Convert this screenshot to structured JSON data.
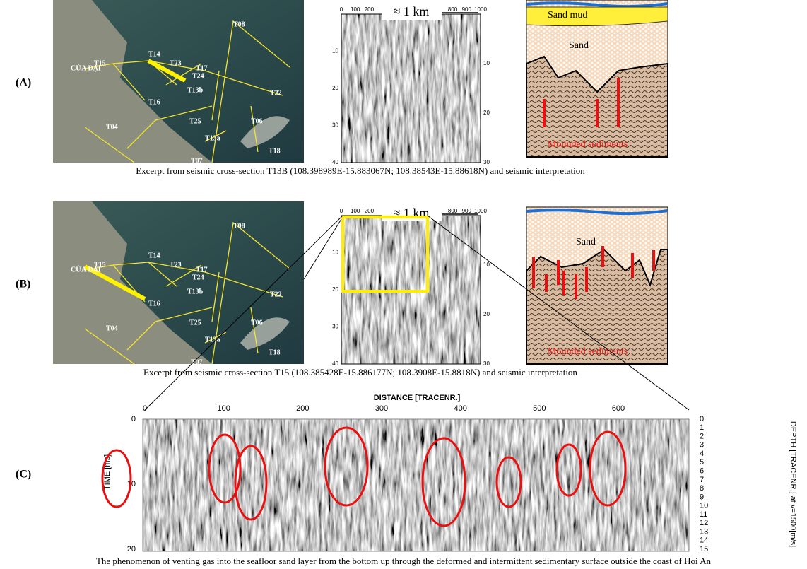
{
  "panels": [
    {
      "label": "(A)",
      "map_labels": [
        "CỬA ĐẠI",
        "T08",
        "T15",
        "T14",
        "T23",
        "T17",
        "T24",
        "T13b",
        "T16",
        "T22",
        "T04",
        "T25",
        "T06",
        "T13a",
        "T18",
        "T07"
      ],
      "scale": "≈ 1 km",
      "top_ticks": [
        0,
        100,
        200,
        800,
        900,
        1000
      ],
      "time_ticks": [
        10,
        20,
        30,
        40
      ],
      "depth_ticks": [
        10,
        20,
        30
      ],
      "interpretation": [
        "Sand mud",
        "Sand",
        "Mounded sediments"
      ],
      "caption": "Excerpt from seismic cross-section T13B (108.398989E-15.883067N; 108.38543E-15.88618N) and seismic interpretation"
    },
    {
      "label": "(B)",
      "map_labels": [
        "CỬA ĐẠI",
        "T08",
        "T15",
        "T14",
        "T23",
        "T17",
        "T24",
        "T13b",
        "T16",
        "T22",
        "T04",
        "T25",
        "T06",
        "T13a",
        "T18",
        "T07"
      ],
      "scale": "≈ 1 km",
      "top_ticks": [
        0,
        100,
        200,
        800,
        900,
        1000
      ],
      "time_ticks": [
        10,
        20,
        30,
        40
      ],
      "depth_ticks": [
        10,
        20,
        30
      ],
      "interpretation": [
        "Sand",
        "Mounded sediments"
      ],
      "caption": "Excerpt from seismic cross-section T15 (108.385428E-15.886177N; 108.3908E-15.8818N) and seismic interpretation"
    },
    {
      "label": "(C)",
      "x_axis_title": "DISTANCE [TRACENR.]",
      "xticks": [
        0,
        100,
        200,
        300,
        400,
        500,
        600
      ],
      "y_axis_title": "TIME [ms]",
      "yticks": [
        0,
        10,
        20
      ],
      "y2_axis_title": "DEPTH [TRACENR.] at v=1500[m/s]",
      "y2ticks": [
        0,
        1,
        2,
        3,
        4,
        5,
        6,
        7,
        8,
        9,
        10,
        11,
        12,
        13,
        14,
        15
      ],
      "caption": "The phenomenon of venting gas into the seafloor sand layer from the bottom up through the deformed and intermittent sedimentary surface outside the coast of Hoi An"
    }
  ]
}
